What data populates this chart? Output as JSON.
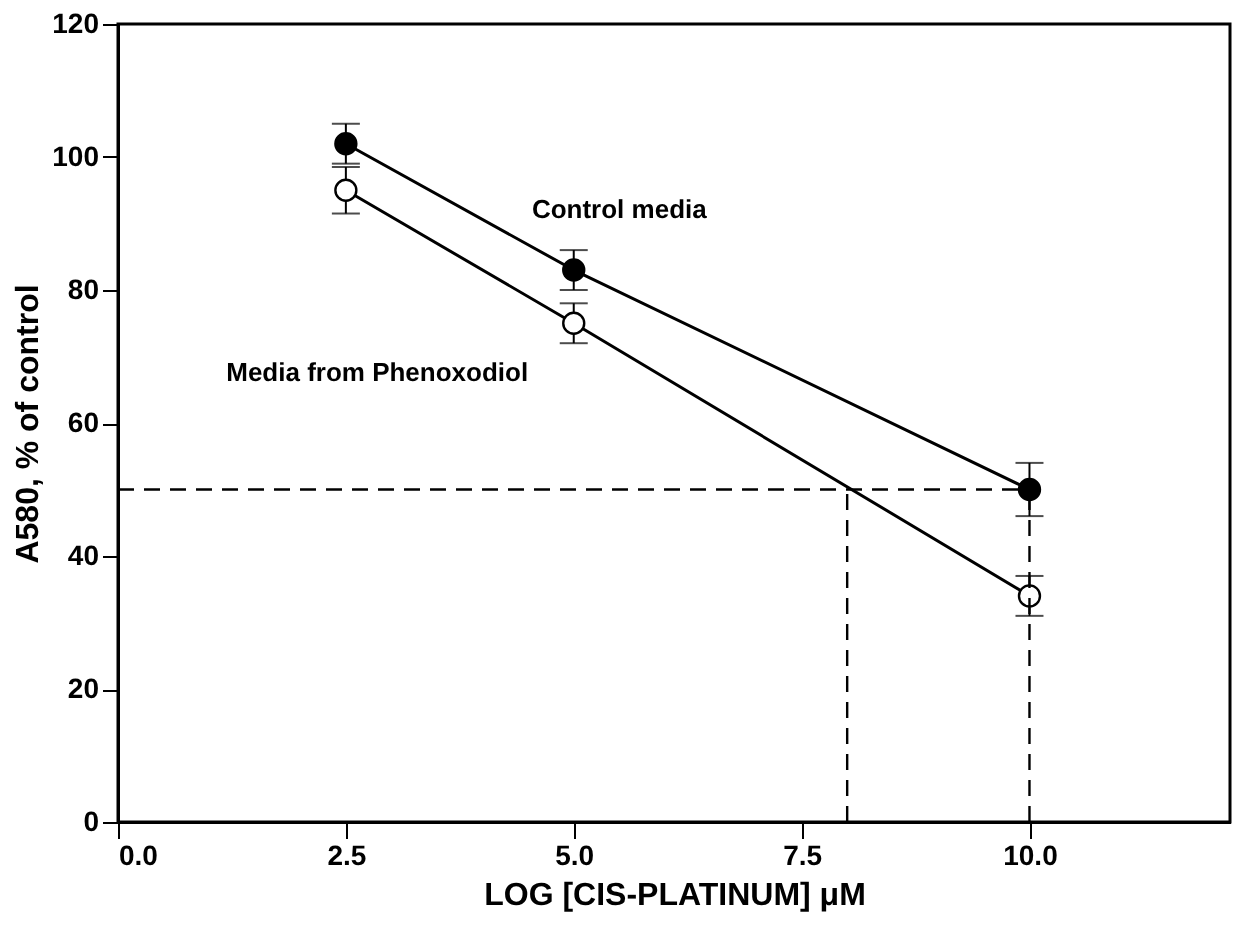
{
  "chart_data": {
    "type": "line",
    "xlabel": "LOG [CIS-PLATINUM] μM",
    "ylabel": "A580, % of control",
    "x": [
      2.5,
      5.0,
      10.0
    ],
    "series": [
      {
        "name": "Control media",
        "color": "#000000",
        "values": [
          102,
          83,
          50
        ],
        "errors": [
          3,
          3,
          4
        ]
      },
      {
        "name": "Media from Phenoxodiol",
        "color": "#000000",
        "values": [
          95,
          75,
          34
        ],
        "errors": [
          3.5,
          3,
          3
        ]
      }
    ],
    "xlim": [
      0,
      12.2
    ],
    "xticks": [
      {
        "value": 0,
        "label": "0.0"
      },
      {
        "value": 2.5,
        "label": "2.5"
      },
      {
        "value": 5,
        "label": "5.0"
      },
      {
        "value": 7.5,
        "label": "7.5"
      },
      {
        "value": 10,
        "label": "10.0"
      }
    ],
    "ylim": [
      0,
      120
    ],
    "yticks": [
      0,
      20,
      40,
      60,
      80,
      100,
      120
    ],
    "ref_lines": [
      {
        "axis": "y",
        "value": 50,
        "line_style": "dashed"
      },
      {
        "axis": "x",
        "value": 8,
        "line_style": "dashed"
      },
      {
        "axis": "x",
        "value": 10,
        "line_style": "dashed"
      }
    ],
    "marker": "circle",
    "line_style": "solid",
    "grid": false
  }
}
